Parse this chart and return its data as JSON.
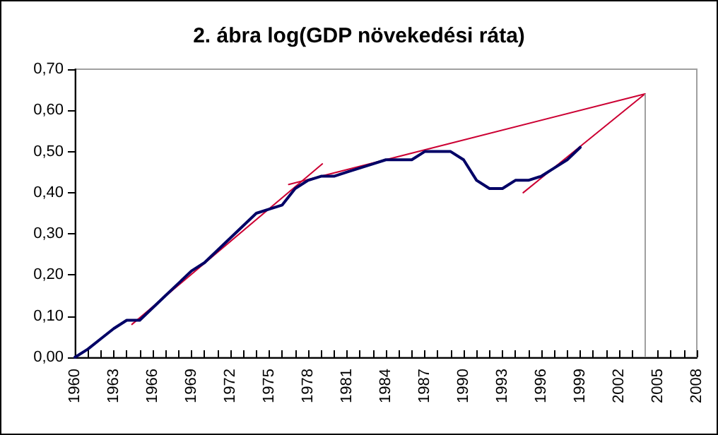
{
  "chart_data": {
    "type": "line",
    "title": "2. ábra log(GDP növekedési ráta)",
    "xlim": [
      1960,
      2008
    ],
    "xticks": [
      {
        "value": 1960,
        "label": "1960"
      },
      {
        "value": 1961,
        "label": null
      },
      {
        "value": 1962,
        "label": null
      },
      {
        "value": 1963,
        "label": "1963"
      },
      {
        "value": 1964,
        "label": null
      },
      {
        "value": 1965,
        "label": null
      },
      {
        "value": 1966,
        "label": "1966"
      },
      {
        "value": 1967,
        "label": null
      },
      {
        "value": 1968,
        "label": null
      },
      {
        "value": 1969,
        "label": "1969"
      },
      {
        "value": 1970,
        "label": null
      },
      {
        "value": 1971,
        "label": null
      },
      {
        "value": 1972,
        "label": "1972"
      },
      {
        "value": 1973,
        "label": null
      },
      {
        "value": 1974,
        "label": null
      },
      {
        "value": 1975,
        "label": "1975"
      },
      {
        "value": 1976,
        "label": null
      },
      {
        "value": 1977,
        "label": null
      },
      {
        "value": 1978,
        "label": "1978"
      },
      {
        "value": 1979,
        "label": null
      },
      {
        "value": 1980,
        "label": null
      },
      {
        "value": 1981,
        "label": "1981"
      },
      {
        "value": 1982,
        "label": null
      },
      {
        "value": 1983,
        "label": null
      },
      {
        "value": 1984,
        "label": "1984"
      },
      {
        "value": 1985,
        "label": null
      },
      {
        "value": 1986,
        "label": null
      },
      {
        "value": 1987,
        "label": "1987"
      },
      {
        "value": 1988,
        "label": null
      },
      {
        "value": 1989,
        "label": null
      },
      {
        "value": 1990,
        "label": "1990"
      },
      {
        "value": 1991,
        "label": null
      },
      {
        "value": 1992,
        "label": null
      },
      {
        "value": 1993,
        "label": "1993"
      },
      {
        "value": 1994,
        "label": null
      },
      {
        "value": 1995,
        "label": null
      },
      {
        "value": 1996,
        "label": "1996"
      },
      {
        "value": 1997,
        "label": null
      },
      {
        "value": 1998,
        "label": null
      },
      {
        "value": 1999,
        "label": "1999"
      },
      {
        "value": 2000,
        "label": null
      },
      {
        "value": 2001,
        "label": null
      },
      {
        "value": 2002,
        "label": "2002"
      },
      {
        "value": 2003,
        "label": null
      },
      {
        "value": 2004,
        "label": null
      },
      {
        "value": 2005,
        "label": "2005"
      },
      {
        "value": 2006,
        "label": null
      },
      {
        "value": 2007,
        "label": null
      },
      {
        "value": 2008,
        "label": "2008"
      }
    ],
    "ylim": [
      0,
      0.7
    ],
    "yticks": [
      {
        "value": 0,
        "label": "0,00"
      },
      {
        "value": 0.1,
        "label": "0,10"
      },
      {
        "value": 0.2,
        "label": "0,20"
      },
      {
        "value": 0.3,
        "label": "0,30"
      },
      {
        "value": 0.4,
        "label": "0,40"
      },
      {
        "value": 0.5,
        "label": "0,50"
      },
      {
        "value": 0.6,
        "label": "0,60"
      },
      {
        "value": 0.7,
        "label": "0,70"
      }
    ],
    "grid": false,
    "marker": "none",
    "line_style": "solid",
    "ref_lines": [
      {
        "axis": "x",
        "value": 2004,
        "color": "#a0a0a0"
      }
    ],
    "series": [
      {
        "color": "#000066",
        "x": [
          1960,
          1961,
          1962,
          1963,
          1964,
          1965,
          1966,
          1967,
          1968,
          1969,
          1970,
          1971,
          1972,
          1973,
          1974,
          1975,
          1976,
          1977,
          1978,
          1979,
          1980,
          1981,
          1982,
          1983,
          1984,
          1985,
          1986,
          1987,
          1988,
          1989,
          1990,
          1991,
          1992,
          1993,
          1994,
          1995,
          1996,
          1997,
          1998,
          1999
        ],
        "values": [
          0.0,
          0.02,
          0.045,
          0.07,
          0.09,
          0.09,
          0.12,
          0.15,
          0.18,
          0.21,
          0.23,
          0.26,
          0.29,
          0.32,
          0.35,
          0.36,
          0.37,
          0.41,
          0.43,
          0.44,
          0.44,
          0.45,
          0.46,
          0.47,
          0.48,
          0.48,
          0.48,
          0.5,
          0.5,
          0.5,
          0.48,
          0.43,
          0.41,
          0.41,
          0.43,
          0.43,
          0.44,
          0.46,
          0.48,
          0.51
        ]
      },
      {
        "color": "#cc0033",
        "x": [
          1964.4,
          1979.1
        ],
        "values": [
          0.08,
          0.47
        ]
      },
      {
        "color": "#cc0033",
        "x": [
          1976.5,
          2004
        ],
        "values": [
          0.42,
          0.64
        ]
      },
      {
        "color": "#cc0033",
        "x": [
          1994.6,
          2004
        ],
        "values": [
          0.4,
          0.64
        ]
      }
    ]
  }
}
